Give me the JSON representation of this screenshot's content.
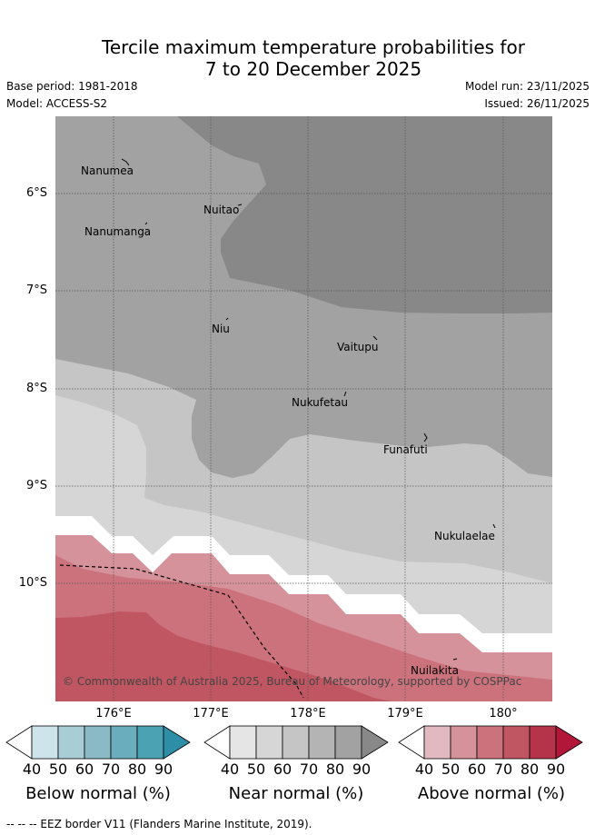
{
  "title_line1": "Tercile maximum temperature probabilities for",
  "title_line2": "7 to 20 December 2025",
  "base_period": "Base period: 1981-2018",
  "model": "Model: ACCESS-S2",
  "model_run": "Model run: 23/11/2025",
  "issued": "Issued: 26/11/2025",
  "lat_labels": [
    "6°S",
    "7°S",
    "8°S",
    "9°S",
    "10°S"
  ],
  "lon_labels": [
    "176°E",
    "177°E",
    "178°E",
    "179°E",
    "180°"
  ],
  "places": [
    "Nanumea",
    "Nuitao",
    "Nanumanga",
    "Niu",
    "Vaitupu",
    "Nukufetau",
    "Funafuti",
    "Nukulaelae",
    "Nuilakita"
  ],
  "credit": "© Commonwealth of Australia 2025, Bureau of Meteorology, supported by COSPPac",
  "colorbars": [
    {
      "title": "Below normal (%)",
      "ticks": [
        "40",
        "50",
        "60",
        "70",
        "80",
        "90"
      ],
      "colors": [
        "#ffffff",
        "#cde5ea",
        "#a9cdd4",
        "#89bac6",
        "#6aadbc",
        "#4ba2b3",
        "#2e8ea5"
      ]
    },
    {
      "title": "Near normal (%)",
      "ticks": [
        "40",
        "50",
        "60",
        "70",
        "80",
        "90"
      ],
      "colors": [
        "#ffffff",
        "#e5e5e5",
        "#d6d6d6",
        "#c5c5c5",
        "#b4b4b4",
        "#a2a2a2",
        "#888888"
      ]
    },
    {
      "title": "Above normal (%)",
      "ticks": [
        "40",
        "50",
        "60",
        "70",
        "80",
        "90"
      ],
      "colors": [
        "#ffffff",
        "#e2b9c0",
        "#d6929a",
        "#cc727c",
        "#c05662",
        "#b5344a",
        "#b2173a"
      ]
    }
  ],
  "footer": "--  --  -- EEZ border V11 (Flanders Marine Institute, 2019)."
}
